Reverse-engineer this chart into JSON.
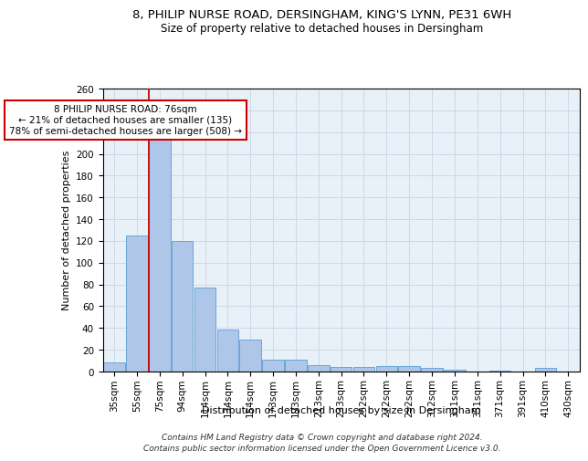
{
  "title_line1": "8, PHILIP NURSE ROAD, DERSINGHAM, KING'S LYNN, PE31 6WH",
  "title_line2": "Size of property relative to detached houses in Dersingham",
  "xlabel": "Distribution of detached houses by size in Dersingham",
  "ylabel": "Number of detached properties",
  "footnote1": "Contains HM Land Registry data © Crown copyright and database right 2024.",
  "footnote2": "Contains public sector information licensed under the Open Government Licence v3.0.",
  "annotation_line1": "8 PHILIP NURSE ROAD: 76sqm",
  "annotation_line2": "← 21% of detached houses are smaller (135)",
  "annotation_line3": "78% of semi-detached houses are larger (508) →",
  "bar_labels": [
    "35sqm",
    "55sqm",
    "75sqm",
    "94sqm",
    "114sqm",
    "134sqm",
    "154sqm",
    "173sqm",
    "193sqm",
    "213sqm",
    "233sqm",
    "252sqm",
    "272sqm",
    "292sqm",
    "312sqm",
    "331sqm",
    "351sqm",
    "371sqm",
    "391sqm",
    "410sqm",
    "430sqm"
  ],
  "bar_values": [
    8,
    125,
    219,
    120,
    77,
    39,
    29,
    11,
    11,
    6,
    4,
    4,
    5,
    5,
    3,
    2,
    0,
    1,
    0,
    3,
    0
  ],
  "bar_color": "#aec6e8",
  "bar_edge_color": "#5a9fd4",
  "red_line_index": 2,
  "red_line_color": "#cc0000",
  "ylim": [
    0,
    260
  ],
  "yticks": [
    0,
    20,
    40,
    60,
    80,
    100,
    120,
    140,
    160,
    180,
    200,
    220,
    240,
    260
  ],
  "ax_facecolor": "#e8f0f8",
  "background_color": "#ffffff",
  "grid_color": "#d0d8e8",
  "title_fontsize": 9.5,
  "subtitle_fontsize": 8.5,
  "axis_label_fontsize": 8,
  "tick_fontsize": 7.5,
  "annotation_fontsize": 7.5,
  "footnote_fontsize": 6.5
}
